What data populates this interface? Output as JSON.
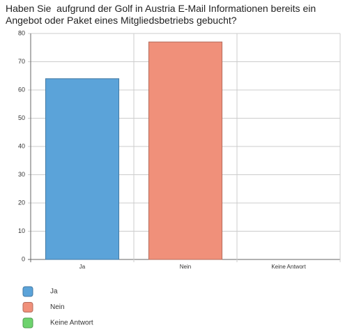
{
  "chart_data": {
    "type": "bar",
    "title": "Haben Sie  aufgrund der Golf in Austria E-Mail Informationen bereits ein Angebot oder Paket eines Mitgliedsbetriebs gebucht?",
    "categories": [
      "Ja",
      "Nein",
      "Keine Antwort"
    ],
    "values": [
      64,
      77,
      0
    ],
    "colors": [
      "#5ba3d9",
      "#f0907a",
      "#6dd36d"
    ],
    "ylim": [
      0,
      80
    ],
    "yticks": [
      0,
      10,
      20,
      30,
      40,
      50,
      60,
      70,
      80
    ],
    "grid": true
  }
}
